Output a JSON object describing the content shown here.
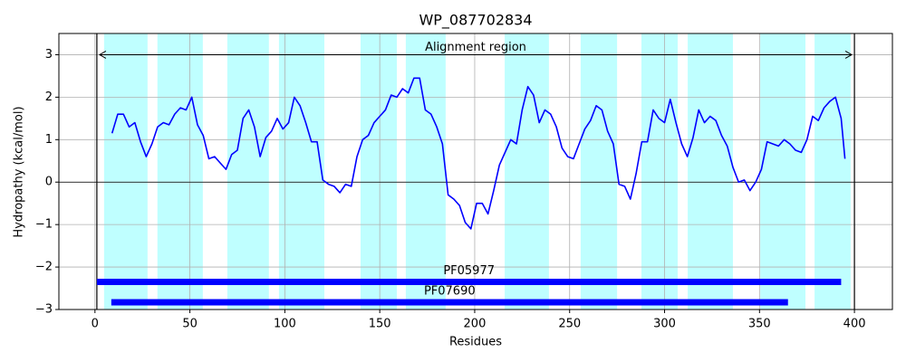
{
  "chart_data": {
    "type": "line",
    "title": "WP_087702834",
    "xlabel": "Residues",
    "ylabel": "Hydropathy (kcal/mol)",
    "xlim": [
      -19,
      420
    ],
    "ylim": [
      -3,
      3.5
    ],
    "xticks": [
      0,
      50,
      100,
      150,
      200,
      250,
      300,
      350,
      400
    ],
    "yticks": [
      {
        "value": -3,
        "label": "−3"
      },
      {
        "value": -2,
        "label": "−2"
      },
      {
        "value": -1,
        "label": "−1"
      },
      0,
      1,
      2,
      3
    ],
    "grid": true,
    "hline": 0,
    "color": "#0000ff",
    "x": [
      9,
      12,
      15,
      18,
      21,
      24,
      27,
      30,
      33,
      36,
      39,
      42,
      45,
      48,
      51,
      54,
      57,
      60,
      63,
      66,
      69,
      72,
      75,
      78,
      81,
      84,
      87,
      90,
      93,
      96,
      99,
      102,
      105,
      108,
      111,
      114,
      117,
      120,
      123,
      126,
      129,
      132,
      135,
      138,
      141,
      144,
      147,
      150,
      153,
      156,
      159,
      162,
      165,
      168,
      171,
      174,
      177,
      180,
      183,
      186,
      189,
      192,
      195,
      198,
      201,
      204,
      207,
      210,
      213,
      216,
      219,
      222,
      225,
      228,
      231,
      234,
      237,
      240,
      243,
      246,
      249,
      252,
      255,
      258,
      261,
      264,
      267,
      270,
      273,
      276,
      279,
      282,
      285,
      288,
      291,
      294,
      297,
      300,
      303,
      306,
      309,
      312,
      315,
      318,
      321,
      324,
      327,
      330,
      333,
      336,
      339,
      342,
      345,
      348,
      351,
      354,
      357,
      360,
      363,
      366,
      369,
      372,
      375,
      378,
      381,
      384,
      387,
      390,
      393,
      395
    ],
    "values": [
      1.15,
      1.6,
      1.6,
      1.3,
      1.4,
      0.95,
      0.6,
      0.9,
      1.3,
      1.4,
      1.35,
      1.6,
      1.75,
      1.7,
      2.0,
      1.35,
      1.1,
      0.55,
      0.6,
      0.45,
      0.3,
      0.65,
      0.75,
      1.5,
      1.7,
      1.3,
      0.6,
      1.05,
      1.2,
      1.5,
      1.25,
      1.4,
      2.0,
      1.8,
      1.4,
      0.95,
      0.95,
      0.05,
      -0.05,
      -0.1,
      -0.25,
      -0.05,
      -0.1,
      0.6,
      1.0,
      1.1,
      1.4,
      1.55,
      1.7,
      2.05,
      2.0,
      2.2,
      2.1,
      2.45,
      2.45,
      1.7,
      1.6,
      1.3,
      0.9,
      -0.3,
      -0.4,
      -0.55,
      -0.95,
      -1.1,
      -0.5,
      -0.5,
      -0.75,
      -0.2,
      0.4,
      0.7,
      1.0,
      0.9,
      1.7,
      2.25,
      2.05,
      1.4,
      1.7,
      1.6,
      1.3,
      0.8,
      0.6,
      0.55,
      0.9,
      1.25,
      1.45,
      1.8,
      1.7,
      1.2,
      0.9,
      -0.05,
      -0.1,
      -0.4,
      0.2,
      0.95,
      0.95,
      1.7,
      1.5,
      1.4,
      1.95,
      1.4,
      0.9,
      0.6,
      1.05,
      1.7,
      1.4,
      1.55,
      1.45,
      1.1,
      0.85,
      0.35,
      0.0,
      0.05,
      -0.2,
      0.0,
      0.3,
      0.95,
      0.9,
      0.85,
      1.0,
      0.9,
      0.75,
      0.7,
      1.0,
      1.55,
      1.45,
      1.75,
      1.9,
      2.0,
      1.5,
      0.55
    ],
    "spans": {
      "color": "#00ffff",
      "alpha": 0.25,
      "ranges": [
        [
          4.8,
          27.7
        ],
        [
          32.9,
          56.8
        ],
        [
          69.7,
          91.6
        ],
        [
          96.9,
          120.8
        ],
        [
          139.9,
          159
        ],
        [
          163.7,
          184.7
        ],
        [
          215.8,
          239.1
        ],
        [
          255.8,
          275
        ],
        [
          287.8,
          306.9
        ],
        [
          312.2,
          336
        ],
        [
          350.4,
          374.2
        ],
        [
          379,
          398
        ]
      ]
    },
    "alignment": {
      "label": "Alignment region",
      "start": 1,
      "end": 400,
      "y": 3
    },
    "domains": [
      {
        "name": "PF05977",
        "start": 1,
        "end": 393,
        "y": -2.35,
        "color": "#0000ff"
      },
      {
        "name": "PF07690",
        "start": 8.6,
        "end": 365,
        "y": -2.83,
        "color": "#0000ff"
      }
    ]
  }
}
